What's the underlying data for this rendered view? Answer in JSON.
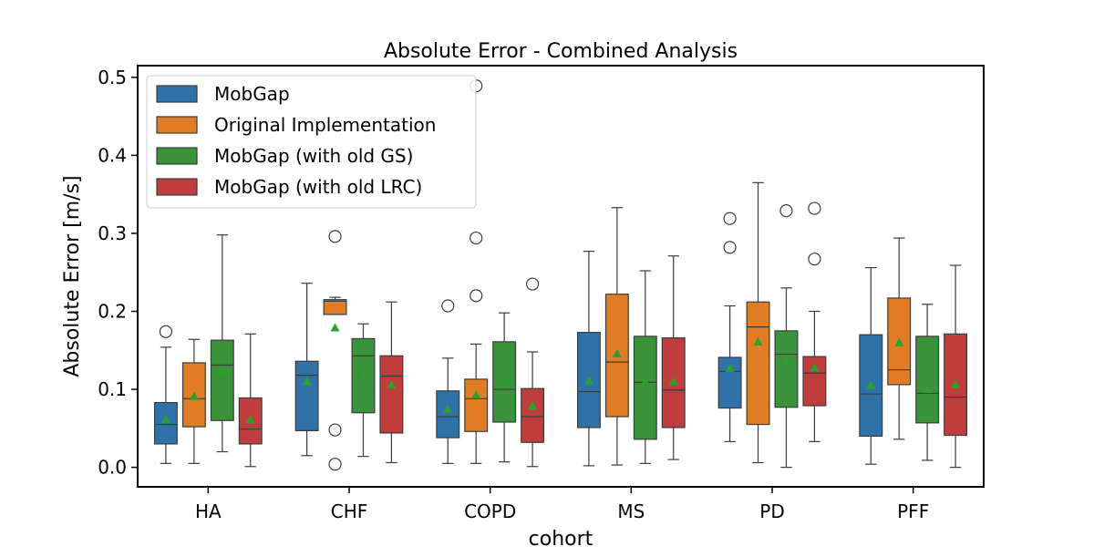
{
  "chart_data": {
    "type": "box",
    "title": "Absolute Error - Combined Analysis",
    "xlabel": "cohort",
    "ylabel": "Absolute Error [m/s]",
    "ylim": [
      -0.025,
      0.515
    ],
    "yticks": [
      0.0,
      0.1,
      0.2,
      0.3,
      0.4,
      0.5
    ],
    "ytick_labels": [
      "0.0",
      "0.1",
      "0.2",
      "0.3",
      "0.4",
      "0.5"
    ],
    "legend_position": "top-left",
    "categories": [
      "HA",
      "CHF",
      "COPD",
      "MS",
      "PD",
      "PFF"
    ],
    "series": [
      {
        "name": "MobGap",
        "color": "#2f72a8",
        "boxes": [
          {
            "whislo": 0.005,
            "q1": 0.03,
            "med": 0.055,
            "q3": 0.083,
            "whishi": 0.154,
            "mean": 0.061,
            "fliers": [
              0.174
            ]
          },
          {
            "whislo": 0.015,
            "q1": 0.047,
            "med": 0.118,
            "q3": 0.136,
            "whishi": 0.236,
            "mean": 0.11,
            "fliers": []
          },
          {
            "whislo": 0.005,
            "q1": 0.038,
            "med": 0.065,
            "q3": 0.098,
            "whishi": 0.14,
            "mean": 0.075,
            "fliers": [
              0.207
            ]
          },
          {
            "whislo": 0.002,
            "q1": 0.051,
            "med": 0.097,
            "q3": 0.173,
            "whishi": 0.277,
            "mean": 0.111,
            "fliers": []
          },
          {
            "whislo": 0.033,
            "q1": 0.076,
            "med": 0.123,
            "q3": 0.141,
            "whishi": 0.207,
            "mean": 0.127,
            "fliers": [
              0.282,
              0.319
            ]
          },
          {
            "whislo": 0.004,
            "q1": 0.04,
            "med": 0.094,
            "q3": 0.17,
            "whishi": 0.256,
            "mean": 0.105,
            "fliers": []
          }
        ]
      },
      {
        "name": "Original Implementation",
        "color": "#e07c24",
        "boxes": [
          {
            "whislo": 0.005,
            "q1": 0.052,
            "med": 0.088,
            "q3": 0.134,
            "whishi": 0.164,
            "mean": 0.091,
            "fliers": []
          },
          {
            "whislo": 0.196,
            "q1": 0.196,
            "med": 0.213,
            "q3": 0.215,
            "whishi": 0.218,
            "mean": 0.179,
            "fliers": [
              0.296,
              0.048,
              0.004
            ]
          },
          {
            "whislo": 0.005,
            "q1": 0.046,
            "med": 0.088,
            "q3": 0.113,
            "whishi": 0.158,
            "mean": 0.093,
            "fliers": [
              0.22,
              0.294,
              0.489
            ]
          },
          {
            "whislo": 0.003,
            "q1": 0.065,
            "med": 0.135,
            "q3": 0.222,
            "whishi": 0.333,
            "mean": 0.146,
            "fliers": []
          },
          {
            "whislo": 0.006,
            "q1": 0.055,
            "med": 0.18,
            "q3": 0.212,
            "whishi": 0.365,
            "mean": 0.161,
            "fliers": []
          },
          {
            "whislo": 0.036,
            "q1": 0.106,
            "med": 0.125,
            "q3": 0.217,
            "whishi": 0.294,
            "mean": 0.16,
            "fliers": []
          }
        ]
      },
      {
        "name": "MobGap (with old GS)",
        "color": "#3a923a",
        "boxes": [
          {
            "whislo": 0.02,
            "q1": 0.06,
            "med": 0.131,
            "q3": 0.163,
            "whishi": 0.298,
            "mean": 0.123,
            "fliers": []
          },
          {
            "whislo": 0.014,
            "q1": 0.07,
            "med": 0.143,
            "q3": 0.165,
            "whishi": 0.184,
            "mean": 0.12,
            "fliers": []
          },
          {
            "whislo": 0.007,
            "q1": 0.058,
            "med": 0.1,
            "q3": 0.161,
            "whishi": 0.198,
            "mean": 0.114,
            "fliers": []
          },
          {
            "whislo": 0.005,
            "q1": 0.036,
            "med": 0.109,
            "q3": 0.168,
            "whishi": 0.252,
            "mean": 0.11,
            "fliers": []
          },
          {
            "whislo": 0.0,
            "q1": 0.077,
            "med": 0.145,
            "q3": 0.175,
            "whishi": 0.23,
            "mean": 0.136,
            "fliers": [
              0.329
            ]
          },
          {
            "whislo": 0.009,
            "q1": 0.057,
            "med": 0.095,
            "q3": 0.168,
            "whishi": 0.209,
            "mean": 0.1,
            "fliers": []
          }
        ]
      },
      {
        "name": "MobGap (with old LRC)",
        "color": "#c03d3e",
        "boxes": [
          {
            "whislo": 0.001,
            "q1": 0.03,
            "med": 0.049,
            "q3": 0.089,
            "whishi": 0.171,
            "mean": 0.061,
            "fliers": []
          },
          {
            "whislo": 0.006,
            "q1": 0.044,
            "med": 0.117,
            "q3": 0.143,
            "whishi": 0.212,
            "mean": 0.106,
            "fliers": []
          },
          {
            "whislo": 0.001,
            "q1": 0.032,
            "med": 0.065,
            "q3": 0.101,
            "whishi": 0.148,
            "mean": 0.079,
            "fliers": [
              0.235
            ]
          },
          {
            "whislo": 0.01,
            "q1": 0.051,
            "med": 0.099,
            "q3": 0.166,
            "whishi": 0.271,
            "mean": 0.11,
            "fliers": []
          },
          {
            "whislo": 0.033,
            "q1": 0.079,
            "med": 0.121,
            "q3": 0.142,
            "whishi": 0.2,
            "mean": 0.128,
            "fliers": [
              0.267,
              0.332
            ]
          },
          {
            "whislo": 0.0,
            "q1": 0.041,
            "med": 0.09,
            "q3": 0.171,
            "whishi": 0.259,
            "mean": 0.106,
            "fliers": []
          }
        ]
      }
    ]
  }
}
